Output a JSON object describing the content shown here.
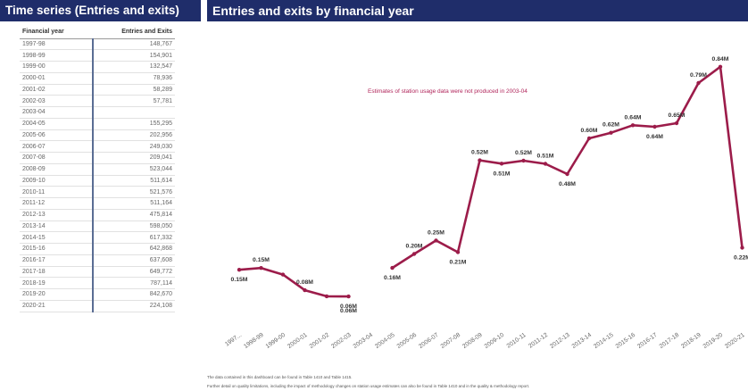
{
  "left_panel": {
    "title": "Time series (Entries and exits)",
    "table": {
      "headers": [
        "Financial year",
        "Entries and Exits"
      ],
      "rows": [
        [
          "1997-98",
          "148,767"
        ],
        [
          "1998-99",
          "154,901"
        ],
        [
          "1999-00",
          "132,547"
        ],
        [
          "2000-01",
          "78,936"
        ],
        [
          "2001-02",
          "58,289"
        ],
        [
          "2002-03",
          "57,781"
        ],
        [
          "2003-04",
          ""
        ],
        [
          "2004-05",
          "155,295"
        ],
        [
          "2005-06",
          "202,956"
        ],
        [
          "2006-07",
          "249,030"
        ],
        [
          "2007-08",
          "209,041"
        ],
        [
          "2008-09",
          "523,044"
        ],
        [
          "2009-10",
          "511,614"
        ],
        [
          "2010-11",
          "521,576"
        ],
        [
          "2011-12",
          "511,164"
        ],
        [
          "2012-13",
          "475,814"
        ],
        [
          "2013-14",
          "598,050"
        ],
        [
          "2014-15",
          "617,332"
        ],
        [
          "2015-16",
          "642,868"
        ],
        [
          "2016-17",
          "637,608"
        ],
        [
          "2017-18",
          "649,772"
        ],
        [
          "2018-19",
          "787,114"
        ],
        [
          "2019-20",
          "842,670"
        ],
        [
          "2020-21",
          "224,108"
        ]
      ]
    }
  },
  "right_panel": {
    "title": "Entries and exits by financial year"
  },
  "colors": {
    "header_bg": "#1f2d6a",
    "line": "#9c1c4a",
    "annotation": "#b0245a"
  },
  "chart_data": {
    "type": "line",
    "title": "Entries and exits by financial year",
    "x": [
      "1997-98",
      "1998-99",
      "1999-00",
      "2000-01",
      "2001-02",
      "2002-03",
      "2003-04",
      "2004-05",
      "2005-06",
      "2006-07",
      "2007-08",
      "2008-09",
      "2009-10",
      "2010-11",
      "2011-12",
      "2012-13",
      "2013-14",
      "2014-15",
      "2015-16",
      "2016-17",
      "2017-18",
      "2018-19",
      "2019-20",
      "2020-21"
    ],
    "x_tick_labels": [
      "1997...",
      "1998-99",
      "1999-00",
      "2000-01",
      "2001-02",
      "2002-03",
      "2003-04",
      "2004-05",
      "2005-06",
      "2006-07",
      "2007-08",
      "2008-09",
      "2009-10",
      "2010-11",
      "2011-12",
      "2012-13",
      "2013-14",
      "2014-15",
      "2015-16",
      "2016-17",
      "2017-18",
      "2018-19",
      "2019-20",
      "2020-21"
    ],
    "series": [
      {
        "values": [
          148767,
          154901,
          132547,
          78936,
          58289,
          57781,
          null,
          155295,
          202956,
          249030,
          209041,
          523044,
          511614,
          521576,
          511164,
          475814,
          598050,
          617332,
          642868,
          637608,
          649772,
          787114,
          842670,
          224108
        ],
        "data_labels": [
          "0.15M",
          "0.15M",
          "",
          "0.08M",
          "",
          "0.06M",
          "",
          "0.16M",
          "0.20M",
          "0.25M",
          "0.21M",
          "0.52M",
          "0.51M",
          "0.52M",
          "0.51M",
          "0.48M",
          "0.60M",
          "0.62M",
          "0.64M",
          "0.64M",
          "0.65M",
          "0.79M",
          "0.84M",
          "0.22M"
        ],
        "extra_labels": [
          {
            "x": "2002-03",
            "text": "0.06M"
          }
        ]
      }
    ],
    "ylim": [
      0,
      900000
    ],
    "grid": false,
    "annotation": "Estimates of station usage data were not produced in 2003-04"
  },
  "footnotes": {
    "line1": "The data contained in this dashboard can be found in Table 1410 and Table 1415.",
    "line2": "Further detail on quality limitations, including the impact of methodology changes on station usage estimates can also be found in Table 1410 and in the quality & methodology report."
  }
}
